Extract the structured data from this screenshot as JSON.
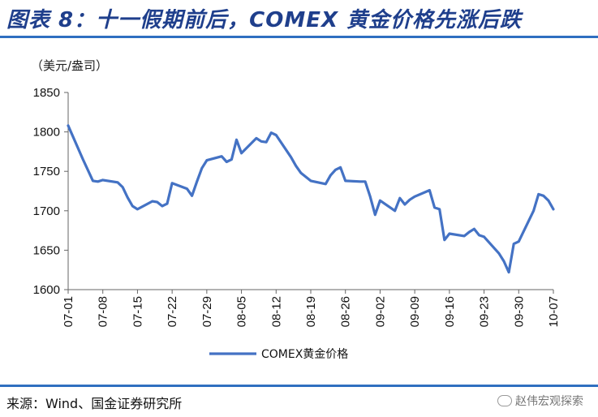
{
  "header": {
    "title": "图表 8：十一假期前后，COMEX 黄金价格先涨后跌"
  },
  "footer": {
    "source": "来源：Wind、国金证券研究所",
    "watermark": "赵伟宏观探索"
  },
  "colors": {
    "line": "#4472c4",
    "title": "#1f3f8c",
    "rule": "#2f6fc0"
  },
  "chart_data": {
    "type": "line",
    "unit_label": "（美元/盎司）",
    "ylim": [
      1600,
      1850
    ],
    "yticks": [
      1600,
      1650,
      1700,
      1750,
      1800,
      1850
    ],
    "x_tick_labels": [
      "07-01",
      "07-08",
      "07-15",
      "07-22",
      "07-29",
      "08-05",
      "08-12",
      "08-19",
      "08-26",
      "09-02",
      "09-09",
      "09-16",
      "09-23",
      "09-30",
      "10-07"
    ],
    "grid": false,
    "legend_position": "bottom-center",
    "series": [
      {
        "name": "COMEX黄金价格",
        "x": [
          "07-01",
          "07-04",
          "07-06",
          "07-07",
          "07-08",
          "07-11",
          "07-12",
          "07-13",
          "07-14",
          "07-15",
          "07-18",
          "07-19",
          "07-20",
          "07-21",
          "07-22",
          "07-25",
          "07-26",
          "07-27",
          "07-28",
          "07-29",
          "08-01",
          "08-02",
          "08-03",
          "08-04",
          "08-05",
          "08-08",
          "08-09",
          "08-10",
          "08-11",
          "08-12",
          "08-15",
          "08-16",
          "08-17",
          "08-18",
          "08-19",
          "08-22",
          "08-23",
          "08-24",
          "08-25",
          "08-26",
          "08-29",
          "08-30",
          "08-31",
          "09-01",
          "09-02",
          "09-05",
          "09-06",
          "09-07",
          "09-08",
          "09-09",
          "09-12",
          "09-13",
          "09-14",
          "09-15",
          "09-16",
          "09-19",
          "09-20",
          "09-21",
          "09-22",
          "09-23",
          "09-26",
          "09-27",
          "09-28",
          "09-29",
          "09-30",
          "10-03",
          "10-04",
          "10-05",
          "10-06",
          "10-07"
        ],
        "values": [
          1808,
          1765,
          1738,
          1737,
          1739,
          1736,
          1730,
          1717,
          1706,
          1702,
          1712,
          1711,
          1706,
          1709,
          1735,
          1728,
          1719,
          1737,
          1754,
          1764,
          1769,
          1762,
          1765,
          1790,
          1773,
          1792,
          1788,
          1787,
          1799,
          1796,
          1768,
          1757,
          1748,
          1743,
          1738,
          1734,
          1745,
          1752,
          1755,
          1738,
          1737,
          1737,
          1718,
          1695,
          1713,
          1700,
          1716,
          1708,
          1714,
          1718,
          1726,
          1704,
          1702,
          1663,
          1671,
          1668,
          1673,
          1677,
          1669,
          1667,
          1646,
          1636,
          1622,
          1658,
          1661,
          1700,
          1721,
          1719,
          1713,
          1702
        ]
      }
    ]
  }
}
